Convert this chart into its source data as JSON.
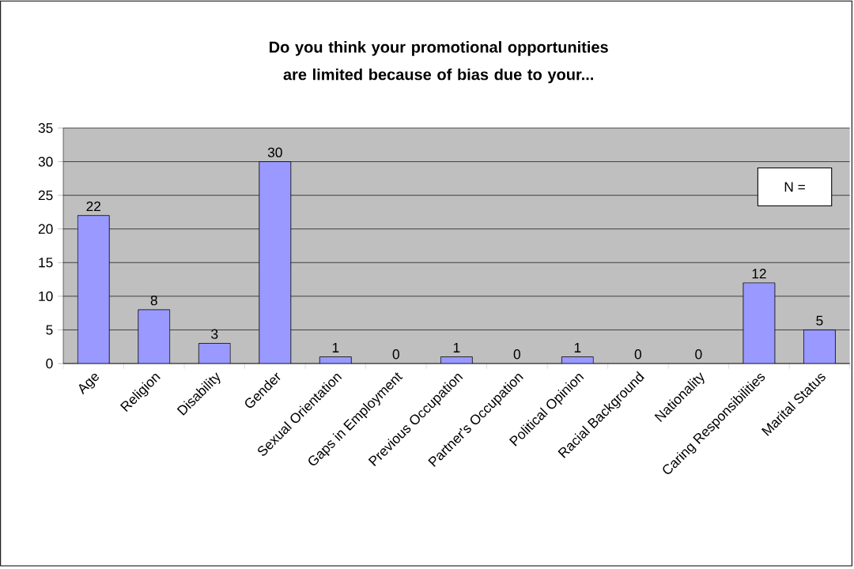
{
  "chart_data": {
    "type": "bar",
    "title": "Do you think your promotional opportunities are limited because of bias due to your...",
    "categories": [
      "Age",
      "Religion",
      "Disability",
      "Gender",
      "Sexual Orientation",
      "Gaps in Employment",
      "Previous Occupation",
      "Partner's Occupation",
      "Political Opinion",
      "Racial Background",
      "Nationality",
      "Caring Responsibilities",
      "Marital Status"
    ],
    "values": [
      22,
      8,
      3,
      30,
      1,
      0,
      1,
      0,
      1,
      0,
      0,
      12,
      5
    ],
    "color": "#9999ff",
    "ylim": [
      0,
      35
    ],
    "yticks": [
      0,
      5,
      10,
      15,
      20,
      25,
      30,
      35
    ],
    "grid": "y",
    "data_labels": true,
    "annotations": [
      "N ="
    ]
  }
}
